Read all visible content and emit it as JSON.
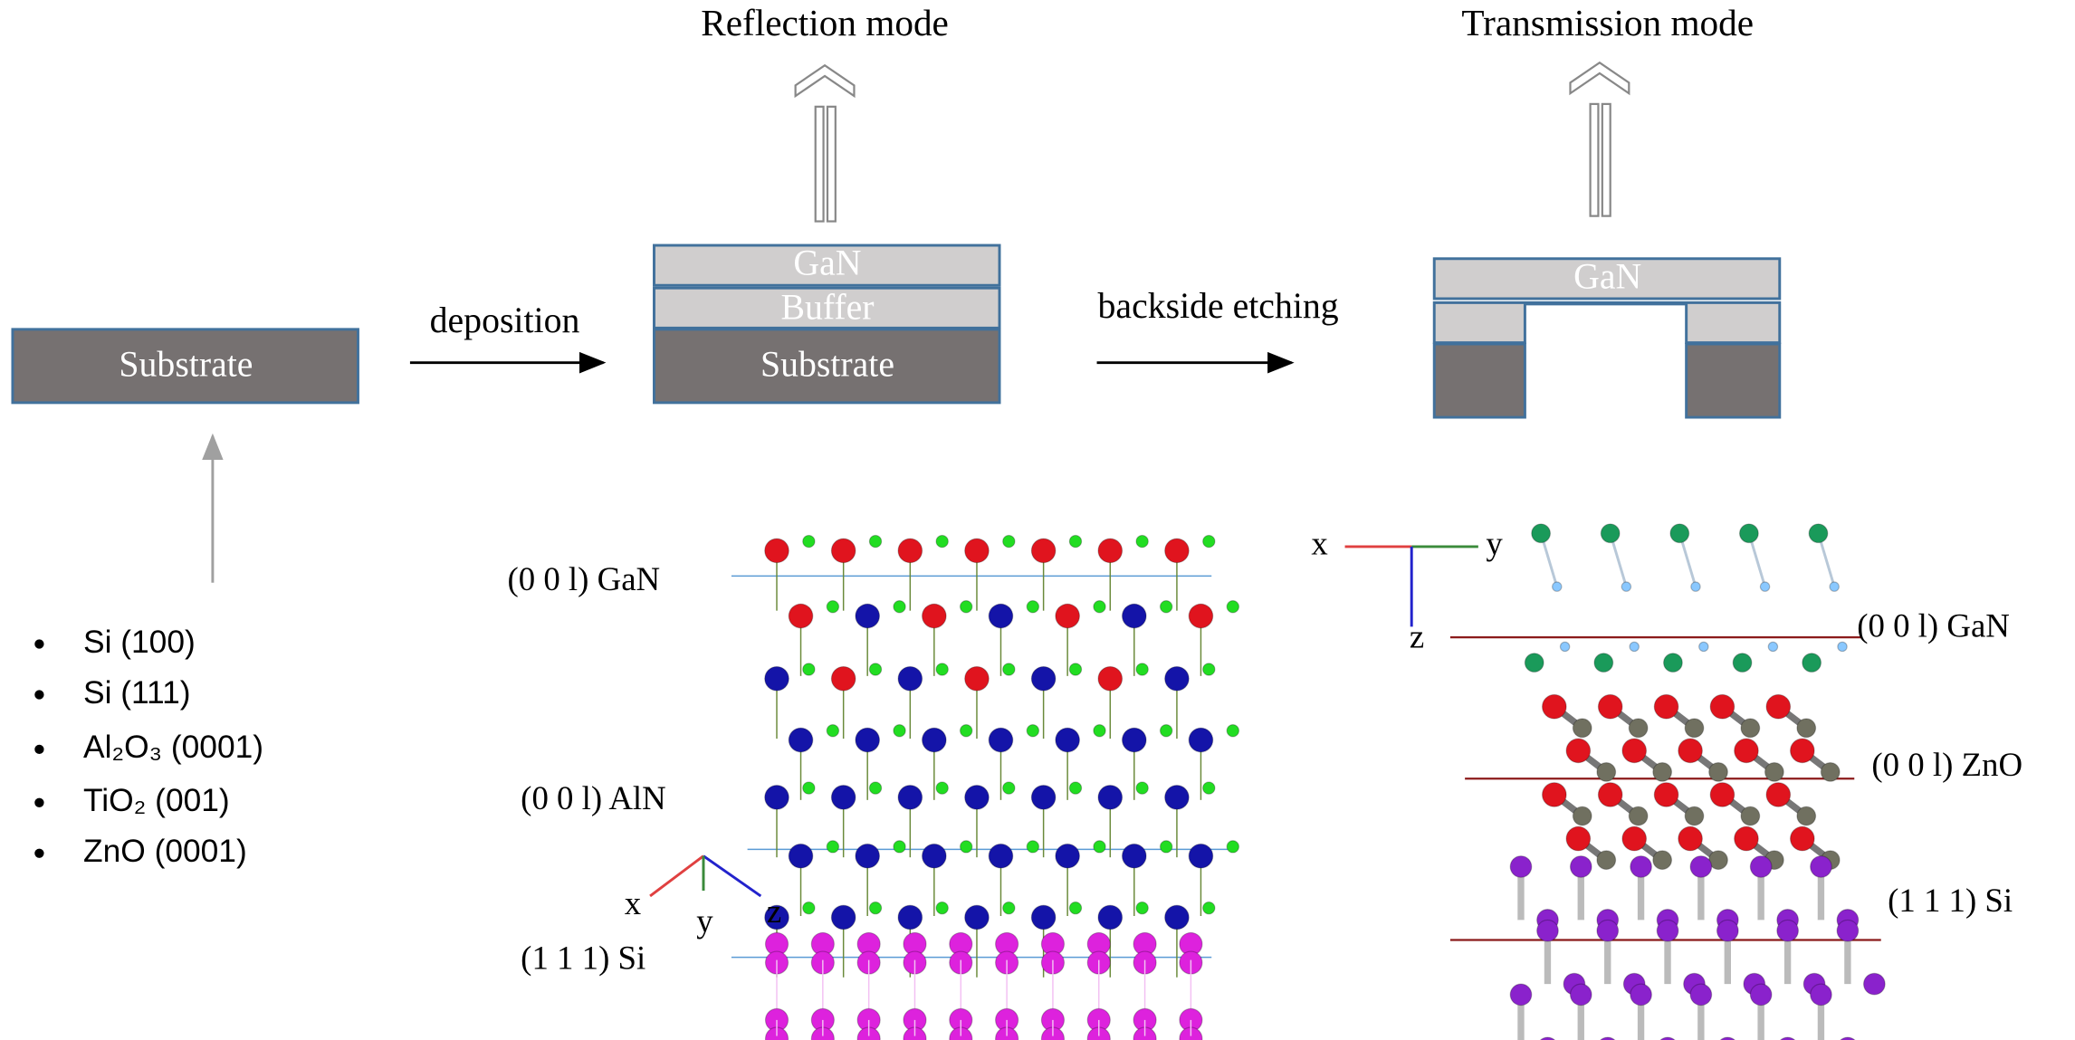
{
  "modes": {
    "reflection": "Reflection mode",
    "transmission": "Transmission mode"
  },
  "steps": {
    "deposition": "deposition",
    "etching": "backside etching"
  },
  "boxes": {
    "substrate_start": "Substrate",
    "gan_mid": "GaN",
    "buffer_mid": "Buffer",
    "substrate_mid": "Substrate",
    "gan_right": "GaN"
  },
  "substrates": [
    "Si (100)",
    "Si (111)",
    "Al₂O₃ (0001)",
    "TiO₂ (001)",
    "ZnO (0001)"
  ],
  "left_structure": {
    "planes": [
      "(0 0 l) GaN",
      "(0 0 l) AlN",
      "(1 1 1) Si"
    ],
    "axes": [
      "x",
      "y",
      "z"
    ]
  },
  "right_structure": {
    "planes": [
      "(0 0 l) GaN",
      "(0 0 l) ZnO",
      "(1 1 1) Si"
    ],
    "axes": [
      "x",
      "y",
      "z"
    ]
  }
}
